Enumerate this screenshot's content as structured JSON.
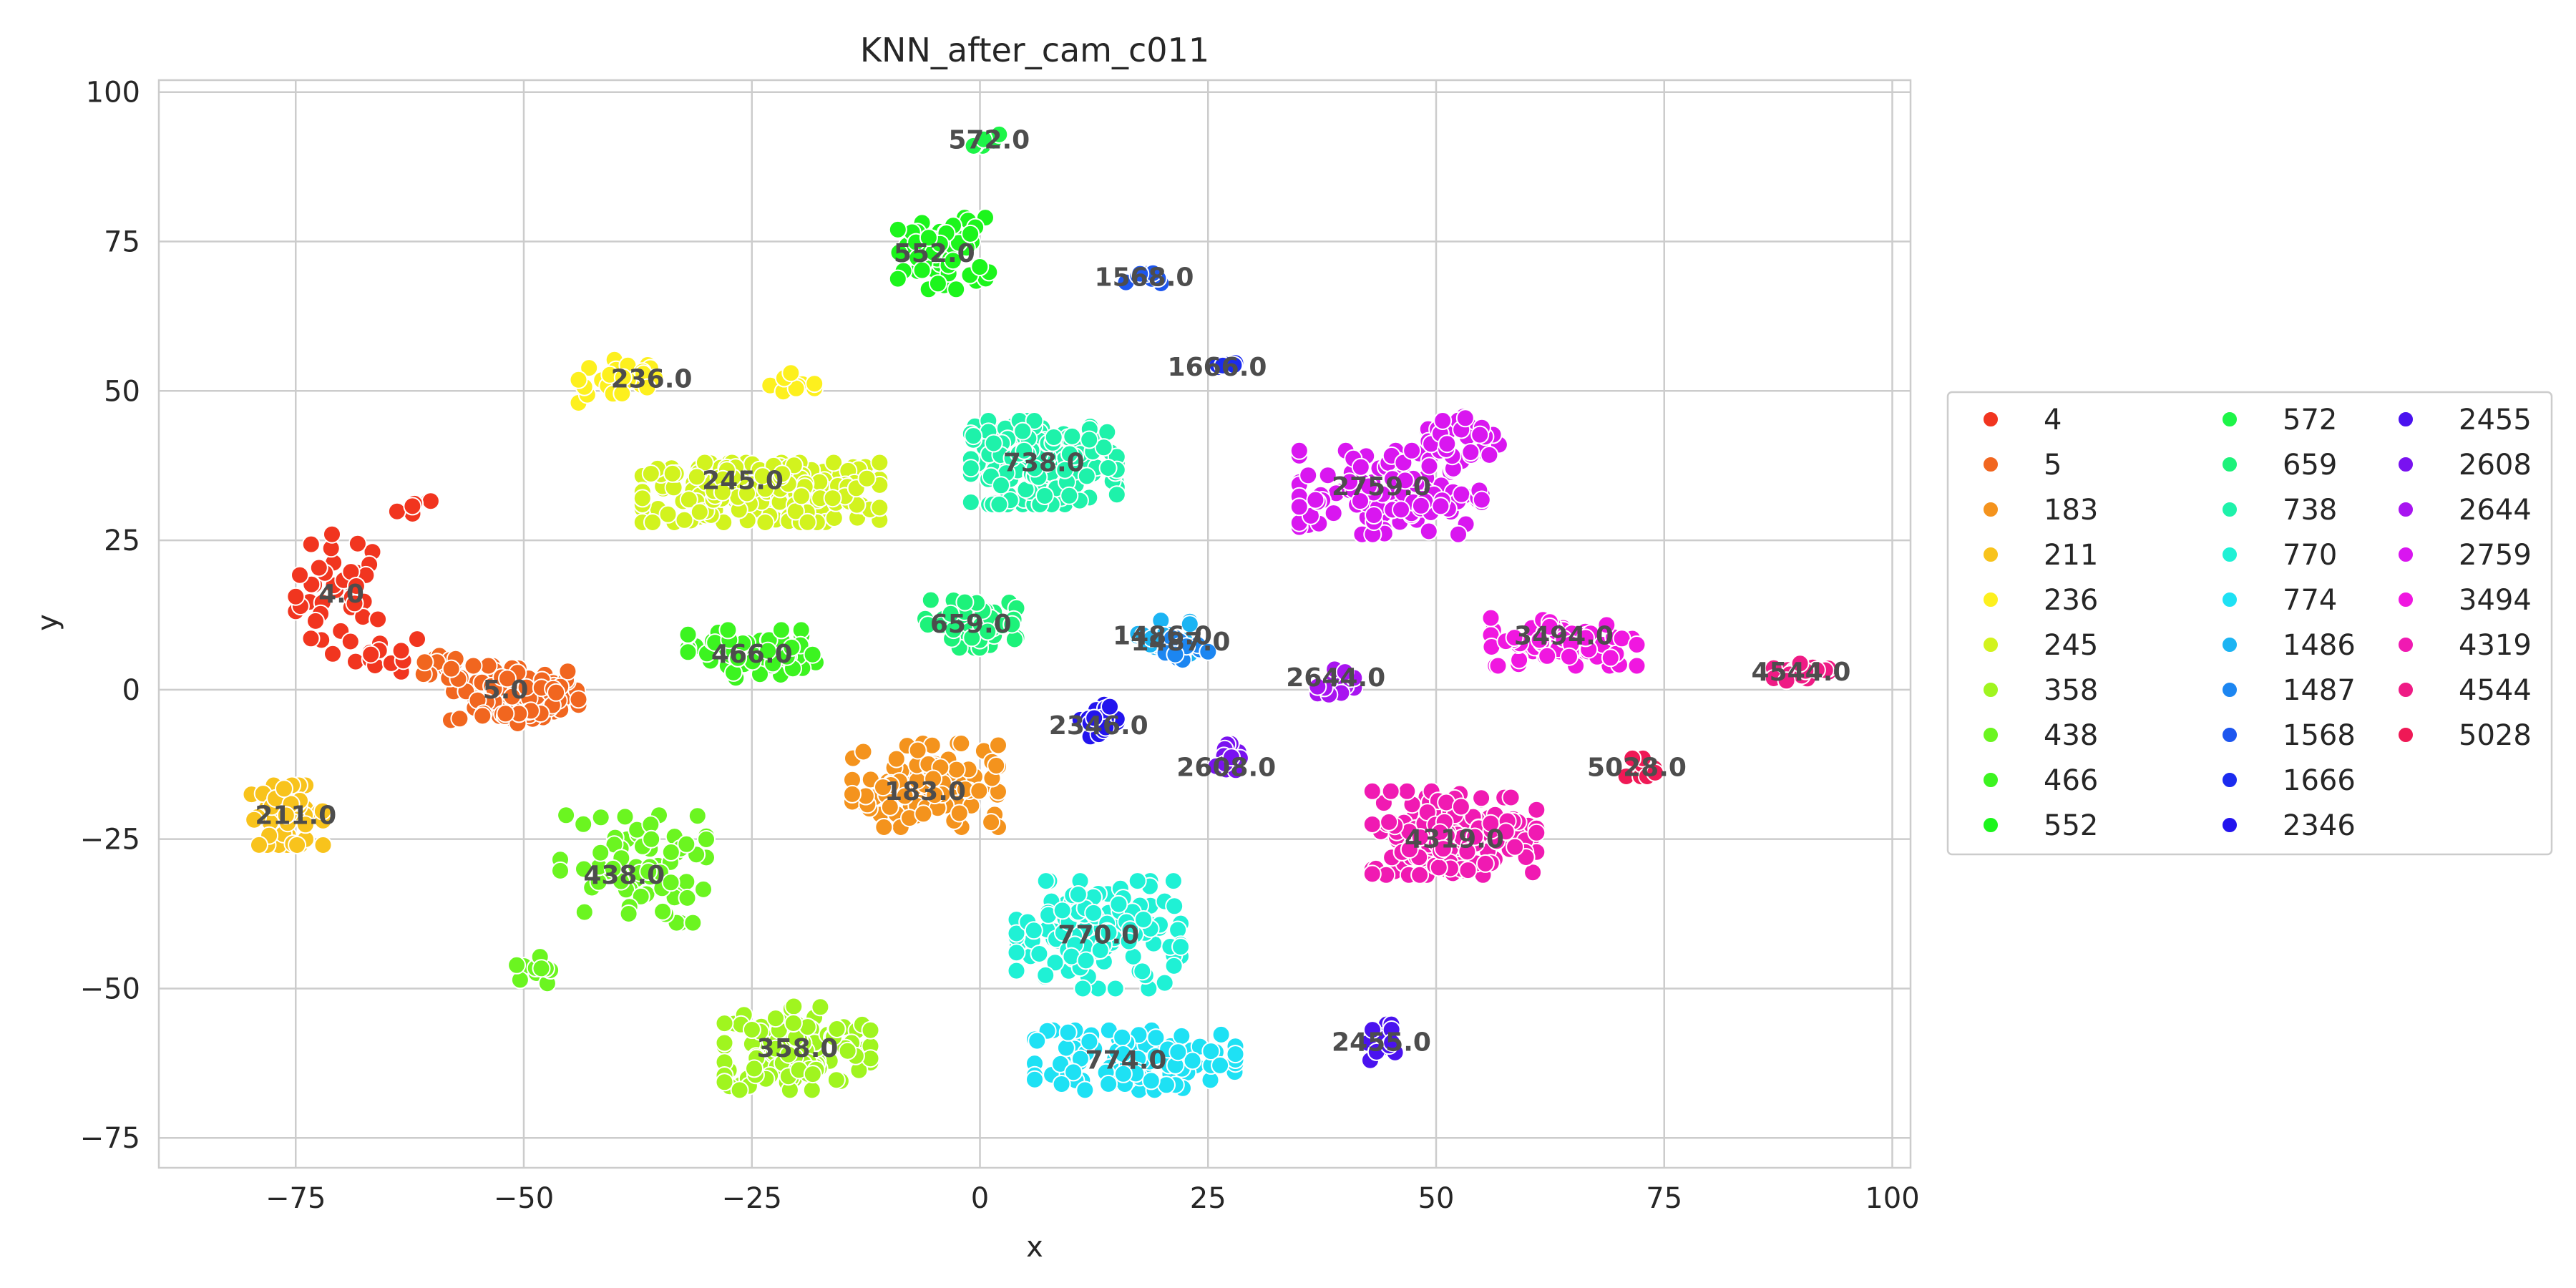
{
  "chart_data": {
    "type": "scatter",
    "title": "KNN_after_cam_c011",
    "xlabel": "x",
    "ylabel": "y",
    "xlim": [
      -90,
      102
    ],
    "ylim": [
      -80,
      102
    ],
    "xticks": [
      -75,
      -50,
      -25,
      0,
      25,
      50,
      75,
      100
    ],
    "yticks": [
      -75,
      -50,
      -25,
      0,
      25,
      50,
      75,
      100
    ],
    "xtick_labels": [
      "−75",
      "−50",
      "−25",
      "0",
      "25",
      "50",
      "75",
      "100"
    ],
    "ytick_labels": [
      "−75",
      "−50",
      "−25",
      "0",
      "25",
      "50",
      "75",
      "100"
    ],
    "grid": true,
    "legend_placement": "right-outside",
    "legend_columns": 3,
    "series": [
      {
        "name": "4",
        "color": "#f1351f",
        "label": "4.0",
        "label_pos": [
          -70,
          16
        ],
        "clusters": [
          [
            -70,
            16,
            5,
            10,
            40
          ],
          [
            -62,
            30,
            2,
            2,
            6
          ],
          [
            -65,
            6,
            4,
            3,
            12
          ]
        ]
      },
      {
        "name": "5",
        "color": "#f1661f",
        "label": "5.0",
        "label_pos": [
          -52,
          0
        ],
        "clusters": [
          [
            -51,
            -1,
            7,
            5,
            90
          ],
          [
            -58,
            4,
            3,
            3,
            15
          ]
        ]
      },
      {
        "name": "183",
        "color": "#f4931d",
        "label": "183.0",
        "label_pos": [
          -6,
          -17
        ],
        "clusters": [
          [
            -6,
            -16,
            8,
            7,
            110
          ]
        ]
      },
      {
        "name": "211",
        "color": "#f8c31c",
        "label": "211.0",
        "label_pos": [
          -75,
          -21
        ],
        "clusters": [
          [
            -76,
            -21,
            4,
            5,
            55
          ]
        ]
      },
      {
        "name": "236",
        "color": "#fdf01e",
        "label": "236.0",
        "label_pos": [
          -36,
          52
        ],
        "clusters": [
          [
            -39,
            52,
            5,
            4,
            30
          ],
          [
            -20,
            51,
            3,
            2,
            10
          ]
        ]
      },
      {
        "name": "245",
        "color": "#d2f31e",
        "label": "245.0",
        "label_pos": [
          -26,
          35
        ],
        "clusters": [
          [
            -24,
            33,
            13,
            5,
            240
          ]
        ]
      },
      {
        "name": "358",
        "color": "#a0f51f",
        "label": "358.0",
        "label_pos": [
          -20,
          -60
        ],
        "clusters": [
          [
            -20,
            -60,
            8,
            7,
            130
          ]
        ]
      },
      {
        "name": "438",
        "color": "#6bf520",
        "label": "438.0",
        "label_pos": [
          -39,
          -31
        ],
        "clusters": [
          [
            -38,
            -30,
            8,
            9,
            70
          ],
          [
            -49,
            -47,
            2,
            3,
            10
          ]
        ]
      },
      {
        "name": "466",
        "color": "#3cf420",
        "label": "466.0",
        "label_pos": [
          -25,
          6
        ],
        "clusters": [
          [
            -25,
            6,
            7,
            4,
            60
          ]
        ]
      },
      {
        "name": "552",
        "color": "#1cf51c",
        "label": "552.0",
        "label_pos": [
          -5,
          73
        ],
        "clusters": [
          [
            -4,
            73,
            5,
            6,
            70
          ]
        ]
      },
      {
        "name": "572",
        "color": "#1df548",
        "label": "572.0",
        "label_pos": [
          1,
          92
        ],
        "clusters": [
          [
            1,
            92,
            2,
            1,
            6
          ]
        ]
      },
      {
        "name": "659",
        "color": "#1df27a",
        "label": "659.0",
        "label_pos": [
          -1,
          11
        ],
        "clusters": [
          [
            -1,
            11,
            5,
            4,
            70
          ]
        ]
      },
      {
        "name": "738",
        "color": "#1ef2aa",
        "label": "738.0",
        "label_pos": [
          7,
          38
        ],
        "clusters": [
          [
            7,
            38,
            8,
            7,
            160
          ]
        ]
      },
      {
        "name": "770",
        "color": "#1ff1d5",
        "label": "770.0",
        "label_pos": [
          13,
          -41
        ],
        "clusters": [
          [
            13,
            -41,
            9,
            9,
            140
          ]
        ]
      },
      {
        "name": "774",
        "color": "#1ee1f4",
        "label": "774.0",
        "label_pos": [
          16,
          -62
        ],
        "clusters": [
          [
            17,
            -62,
            11,
            5,
            110
          ]
        ]
      },
      {
        "name": "1486",
        "color": "#1cb4f3",
        "label": "1486.0",
        "label_pos": [
          20,
          9
        ],
        "clusters": [
          [
            20,
            9,
            3,
            3,
            25
          ]
        ]
      },
      {
        "name": "1487",
        "color": "#1c86f1",
        "label": "1487.0",
        "label_pos": [
          22,
          8
        ],
        "clusters": [
          [
            22,
            7,
            3,
            2,
            20
          ]
        ]
      },
      {
        "name": "1568",
        "color": "#1d56ef",
        "label": "1568.0",
        "label_pos": [
          18,
          69
        ],
        "clusters": [
          [
            18,
            69,
            2,
            1,
            8
          ]
        ]
      },
      {
        "name": "1666",
        "color": "#1b2bef",
        "label": "1666.0",
        "label_pos": [
          26,
          54
        ],
        "clusters": [
          [
            26,
            54,
            2,
            1,
            8
          ]
        ]
      },
      {
        "name": "2346",
        "color": "#2314ee",
        "label": "2346.0",
        "label_pos": [
          13,
          -6
        ],
        "clusters": [
          [
            13,
            -5,
            2,
            3,
            20
          ]
        ]
      },
      {
        "name": "2455",
        "color": "#4a12ef",
        "label": "2455.0",
        "label_pos": [
          44,
          -59
        ],
        "clusters": [
          [
            44,
            -59,
            1.5,
            3,
            15
          ]
        ]
      },
      {
        "name": "2608",
        "color": "#7912f0",
        "label": "2608.0",
        "label_pos": [
          27,
          -13
        ],
        "clusters": [
          [
            27,
            -12,
            1.5,
            3,
            12
          ]
        ]
      },
      {
        "name": "2644",
        "color": "#a814f0",
        "label": "2644.0",
        "label_pos": [
          39,
          2
        ],
        "clusters": [
          [
            39,
            1,
            2,
            3,
            15
          ]
        ]
      },
      {
        "name": "2759",
        "color": "#d916f0",
        "label": "2759.0",
        "label_pos": [
          44,
          34
        ],
        "clusters": [
          [
            45,
            33,
            10,
            7,
            120
          ],
          [
            53,
            42,
            4,
            5,
            30
          ]
        ]
      },
      {
        "name": "3494",
        "color": "#f017e0",
        "label": "3494.0",
        "label_pos": [
          64,
          9
        ],
        "clusters": [
          [
            64,
            8,
            8,
            4,
            80
          ]
        ]
      },
      {
        "name": "4319",
        "color": "#f01ab2",
        "label": "4319.0",
        "label_pos": [
          52,
          -25
        ],
        "clusters": [
          [
            52,
            -24,
            9,
            7,
            170
          ]
        ]
      },
      {
        "name": "4544",
        "color": "#ef1b85",
        "label": "4544.0",
        "label_pos": [
          90,
          3
        ],
        "clusters": [
          [
            90,
            3,
            3,
            1.5,
            20
          ]
        ]
      },
      {
        "name": "5028",
        "color": "#ef1956",
        "label": "5028.0",
        "label_pos": [
          72,
          -13
        ],
        "clusters": [
          [
            72,
            -13,
            2,
            1.5,
            12
          ]
        ]
      }
    ]
  }
}
